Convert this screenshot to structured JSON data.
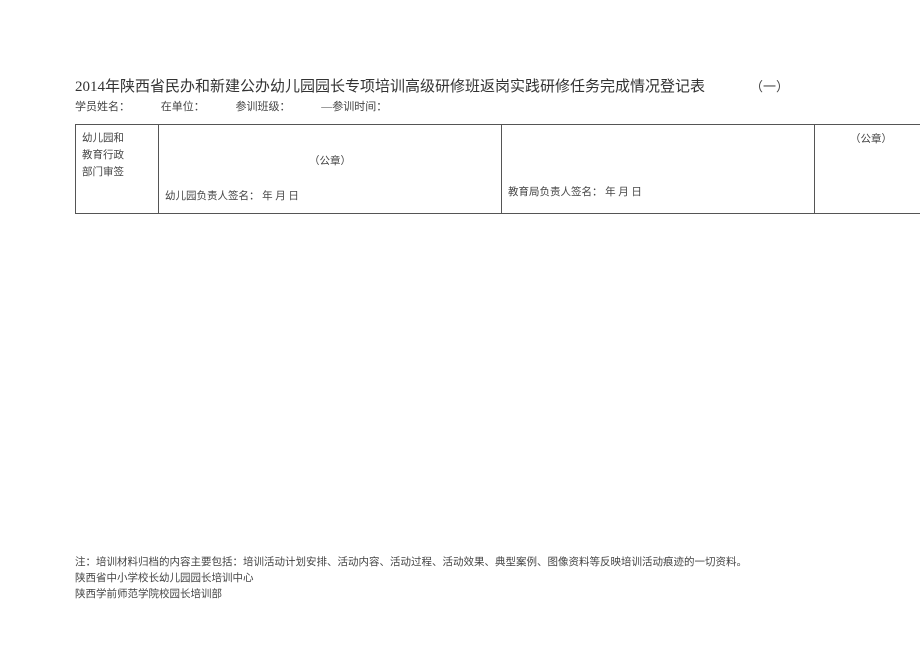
{
  "header": {
    "title": "2014年陕西省民办和新建公办幼儿园园长专项培训高级研修班返岗实践研修任务完成情况登记表",
    "page_number": "（一）",
    "info_labels": {
      "name": "学员姓名：",
      "unit": "在单位：",
      "class": "参训班级：",
      "time": "—参训时间："
    }
  },
  "table": {
    "row_header": "幼儿园和\n教育行政\n部门审签",
    "seal1_label": "（公章）",
    "sign1": "幼儿园负责人签名：   年                月      日",
    "sign2": "教育局负责人签名：   年         月       日",
    "seal2_label": "（公章）"
  },
  "footer": {
    "note": "注：培训材料归档的内容主要包括：培训活动计划安排、活动内容、活动过程、活动效果、典型案例、图像资料等反映培训活动痕迹的一切资料。",
    "org1": "陕西省中小学校长幼儿园园长培训中心",
    "org2": "陕西学前师范学院校园长培训部"
  },
  "colors": {
    "text": "#444444",
    "title": "#333333",
    "border": "#555555",
    "background": "#ffffff"
  }
}
